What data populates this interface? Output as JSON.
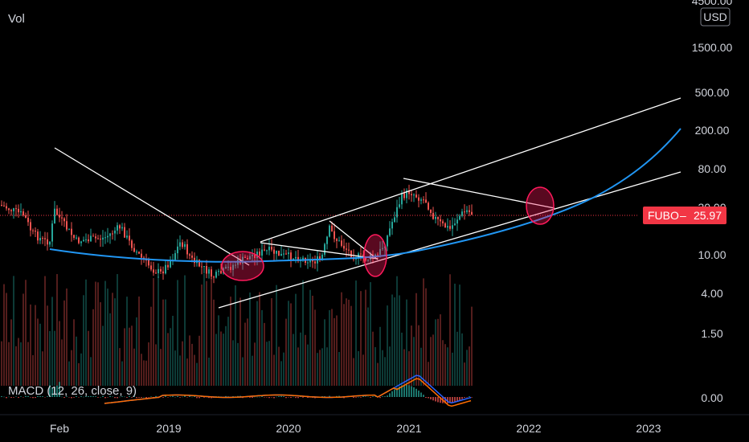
{
  "header": {
    "volume_label": "Vol",
    "currency_label": "USD"
  },
  "macd_label": "MACD (12, 26, close, 9)",
  "price_tag": {
    "symbol": "FUBO",
    "value": "25.97",
    "color": "#f23645"
  },
  "colors": {
    "background": "#000000",
    "up_candle": "#26a69a",
    "down_candle": "#ef5350",
    "trendline": "#ffffff",
    "curve": "#2196f3",
    "ellipse": "#ff1a5c",
    "macd_line": "#2962ff",
    "signal_line": "#ff6d00",
    "price_line": "#f23645"
  },
  "chart_data": {
    "type": "candlestick",
    "symbol": "FUBO",
    "currency": "USD",
    "scale": "log",
    "x_ticks": [
      "Feb",
      "2019",
      "2020",
      "2021",
      "2022",
      "2023"
    ],
    "y_ticks": [
      "4500.00",
      "1500.00",
      "500.00",
      "200.00",
      "80.00",
      "30.00",
      "10.00",
      "4.00",
      "1.50",
      "0.00"
    ],
    "last_price": 25.97,
    "macd_settings": "MACD (12, 26, close, 9)",
    "indicators": [
      "Vol",
      "MACD (12, 26, close, 9)"
    ],
    "annotations": [
      "trendlines",
      "ascending channel",
      "parabolic curve",
      "ellipse highlights"
    ],
    "grid": false
  }
}
